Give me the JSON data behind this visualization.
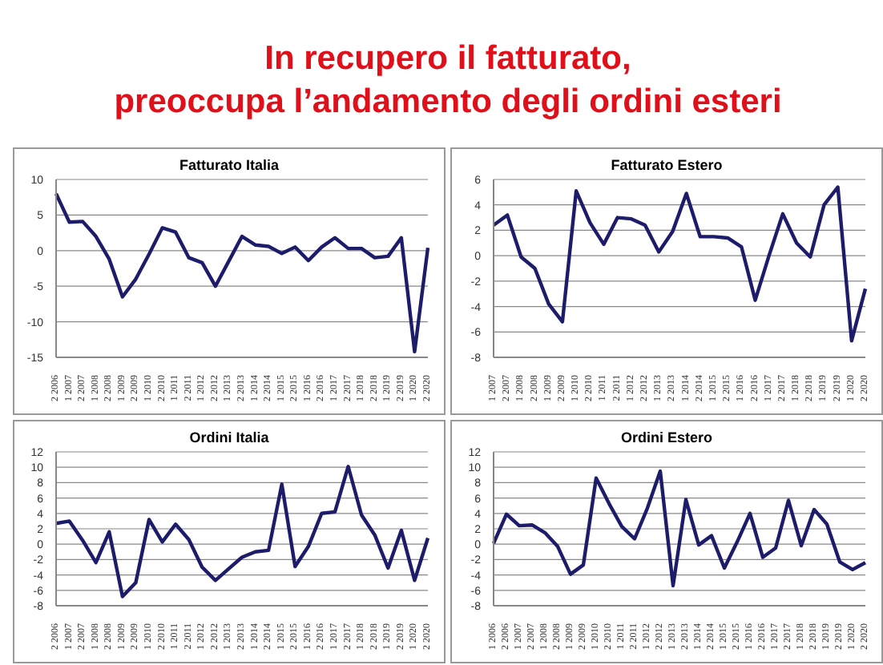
{
  "chart_data": [
    {
      "type": "other",
      "title": "In recupero il fatturato,\npreoccupa l’andamento degli ordini esteri"
    },
    {
      "type": "line",
      "title": "Fatturato Italia",
      "categories": [
        "2 2006",
        "1 2007",
        "2 2007",
        "1 2008",
        "2 2008",
        "1 2009",
        "2 2009",
        "1 2010",
        "2 2010",
        "1 2011",
        "2 2011",
        "1 2012",
        "2 2012",
        "1 2013",
        "2 2013",
        "1 2014",
        "2 2014",
        "1 2015",
        "2 2015",
        "1 2016",
        "2 2016",
        "1 2017",
        "2 2017",
        "1 2018",
        "2 2018",
        "1 2019",
        "2 2019",
        "1 2020",
        "2 2020"
      ],
      "series": [
        {
          "color": "#1c1c6b",
          "values": [
            8,
            4,
            4.1,
            2,
            -1.2,
            -6.5,
            -4,
            -0.5,
            3.2,
            2.6,
            -1,
            -1.7,
            -5,
            -1.5,
            2,
            0.8,
            0.6,
            -0.4,
            0.5,
            -1.4,
            0.5,
            1.8,
            0.3,
            0.3,
            -1,
            -0.8,
            1.8,
            -14.2,
            0.4
          ]
        }
      ],
      "ylim": [
        -15,
        10
      ],
      "yticks": [
        -15,
        -10,
        -5,
        0,
        5,
        10
      ],
      "grid": "y",
      "legend": false,
      "marker": "none",
      "line_style": "solid"
    },
    {
      "type": "line",
      "title": "Fatturato Estero",
      "categories": [
        "1 2007",
        "2 2007",
        "1 2008",
        "2 2008",
        "1 2009",
        "2 2009",
        "1 2010",
        "2 2010",
        "1 2011",
        "2 2011",
        "1 2012",
        "2 2012",
        "1 2013",
        "2 2013",
        "1 2014",
        "2 2014",
        "1 2015",
        "2 2015",
        "1 2016",
        "2 2016",
        "1 2017",
        "2 2017",
        "1 2018",
        "2 2018",
        "1 2019",
        "2 2019",
        "1 2020",
        "2 2020"
      ],
      "series": [
        {
          "color": "#1c1c6b",
          "values": [
            2.4,
            3.2,
            -0.1,
            -1,
            -3.8,
            -5.2,
            5.1,
            2.6,
            0.9,
            3,
            2.9,
            2.4,
            0.3,
            1.9,
            4.9,
            1.5,
            1.5,
            1.4,
            0.7,
            -3.5,
            0,
            3.3,
            1,
            -0.1,
            4,
            5.4,
            -6.7,
            -2.6
          ]
        }
      ],
      "ylim": [
        -8,
        6
      ],
      "yticks": [
        -8,
        -6,
        -4,
        -2,
        0,
        2,
        4,
        6
      ],
      "grid": "y",
      "legend": false,
      "marker": "none",
      "line_style": "solid"
    },
    {
      "type": "line",
      "title": "Ordini Italia",
      "categories": [
        "2 2006",
        "1 2007",
        "2 2007",
        "1 2008",
        "2 2008",
        "1 2009",
        "2 2009",
        "1 2010",
        "2 2010",
        "1 2011",
        "2 2011",
        "1 2012",
        "2 2012",
        "1 2013",
        "2 2013",
        "1 2014",
        "2 2014",
        "1 2015",
        "2 2015",
        "1 2016",
        "2 2016",
        "1 2017",
        "2 2017",
        "1 2018",
        "2 2018",
        "1 2019",
        "2 2019",
        "1 2020",
        "2 2020"
      ],
      "series": [
        {
          "color": "#1c1c6b",
          "values": [
            2.7,
            3,
            0.5,
            -2.4,
            1.6,
            -6.8,
            -5,
            3.2,
            0.3,
            2.6,
            0.6,
            -3,
            -4.7,
            -3.2,
            -1.7,
            -1,
            -0.8,
            7.8,
            -2.9,
            -0.3,
            4,
            4.2,
            10.1,
            3.8,
            1.2,
            -3.1,
            1.8,
            -4.7,
            0.8
          ]
        }
      ],
      "ylim": [
        -8,
        12
      ],
      "yticks": [
        -8,
        -6,
        -4,
        -2,
        0,
        2,
        4,
        6,
        8,
        10,
        12
      ],
      "grid": "y",
      "legend": false,
      "marker": "none",
      "line_style": "solid"
    },
    {
      "type": "line",
      "title": "Ordini Estero",
      "categories": [
        "1 2006",
        "2 2006",
        "1 2007",
        "2 2007",
        "1 2008",
        "2 2008",
        "1 2009",
        "2 2009",
        "1 2010",
        "2 2010",
        "1 2011",
        "2 2011",
        "1 2012",
        "2 2012",
        "1 2013",
        "2 2013",
        "1 2014",
        "2 2014",
        "1 2015",
        "2 2015",
        "1 2016",
        "2 2016",
        "1 2017",
        "2 2017",
        "1 2018",
        "2 2018",
        "1 2019",
        "2 2019",
        "1 2020",
        "2 2020"
      ],
      "series": [
        {
          "color": "#1c1c6b",
          "values": [
            0.1,
            3.9,
            2.4,
            2.5,
            1.5,
            -0.3,
            -3.9,
            -2.7,
            8.6,
            5.3,
            2.3,
            0.7,
            4.7,
            9.5,
            -5.4,
            5.8,
            -0.1,
            1.1,
            -3.1,
            0.3,
            4,
            -1.7,
            -0.5,
            5.7,
            -0.2,
            4.5,
            2.6,
            -2.3,
            -3.3,
            -2.4
          ]
        }
      ],
      "ylim": [
        -8,
        12
      ],
      "yticks": [
        -8,
        -6,
        -4,
        -2,
        0,
        2,
        4,
        6,
        8,
        10,
        12
      ],
      "grid": "y",
      "legend": false,
      "marker": "none",
      "line_style": "solid"
    }
  ]
}
